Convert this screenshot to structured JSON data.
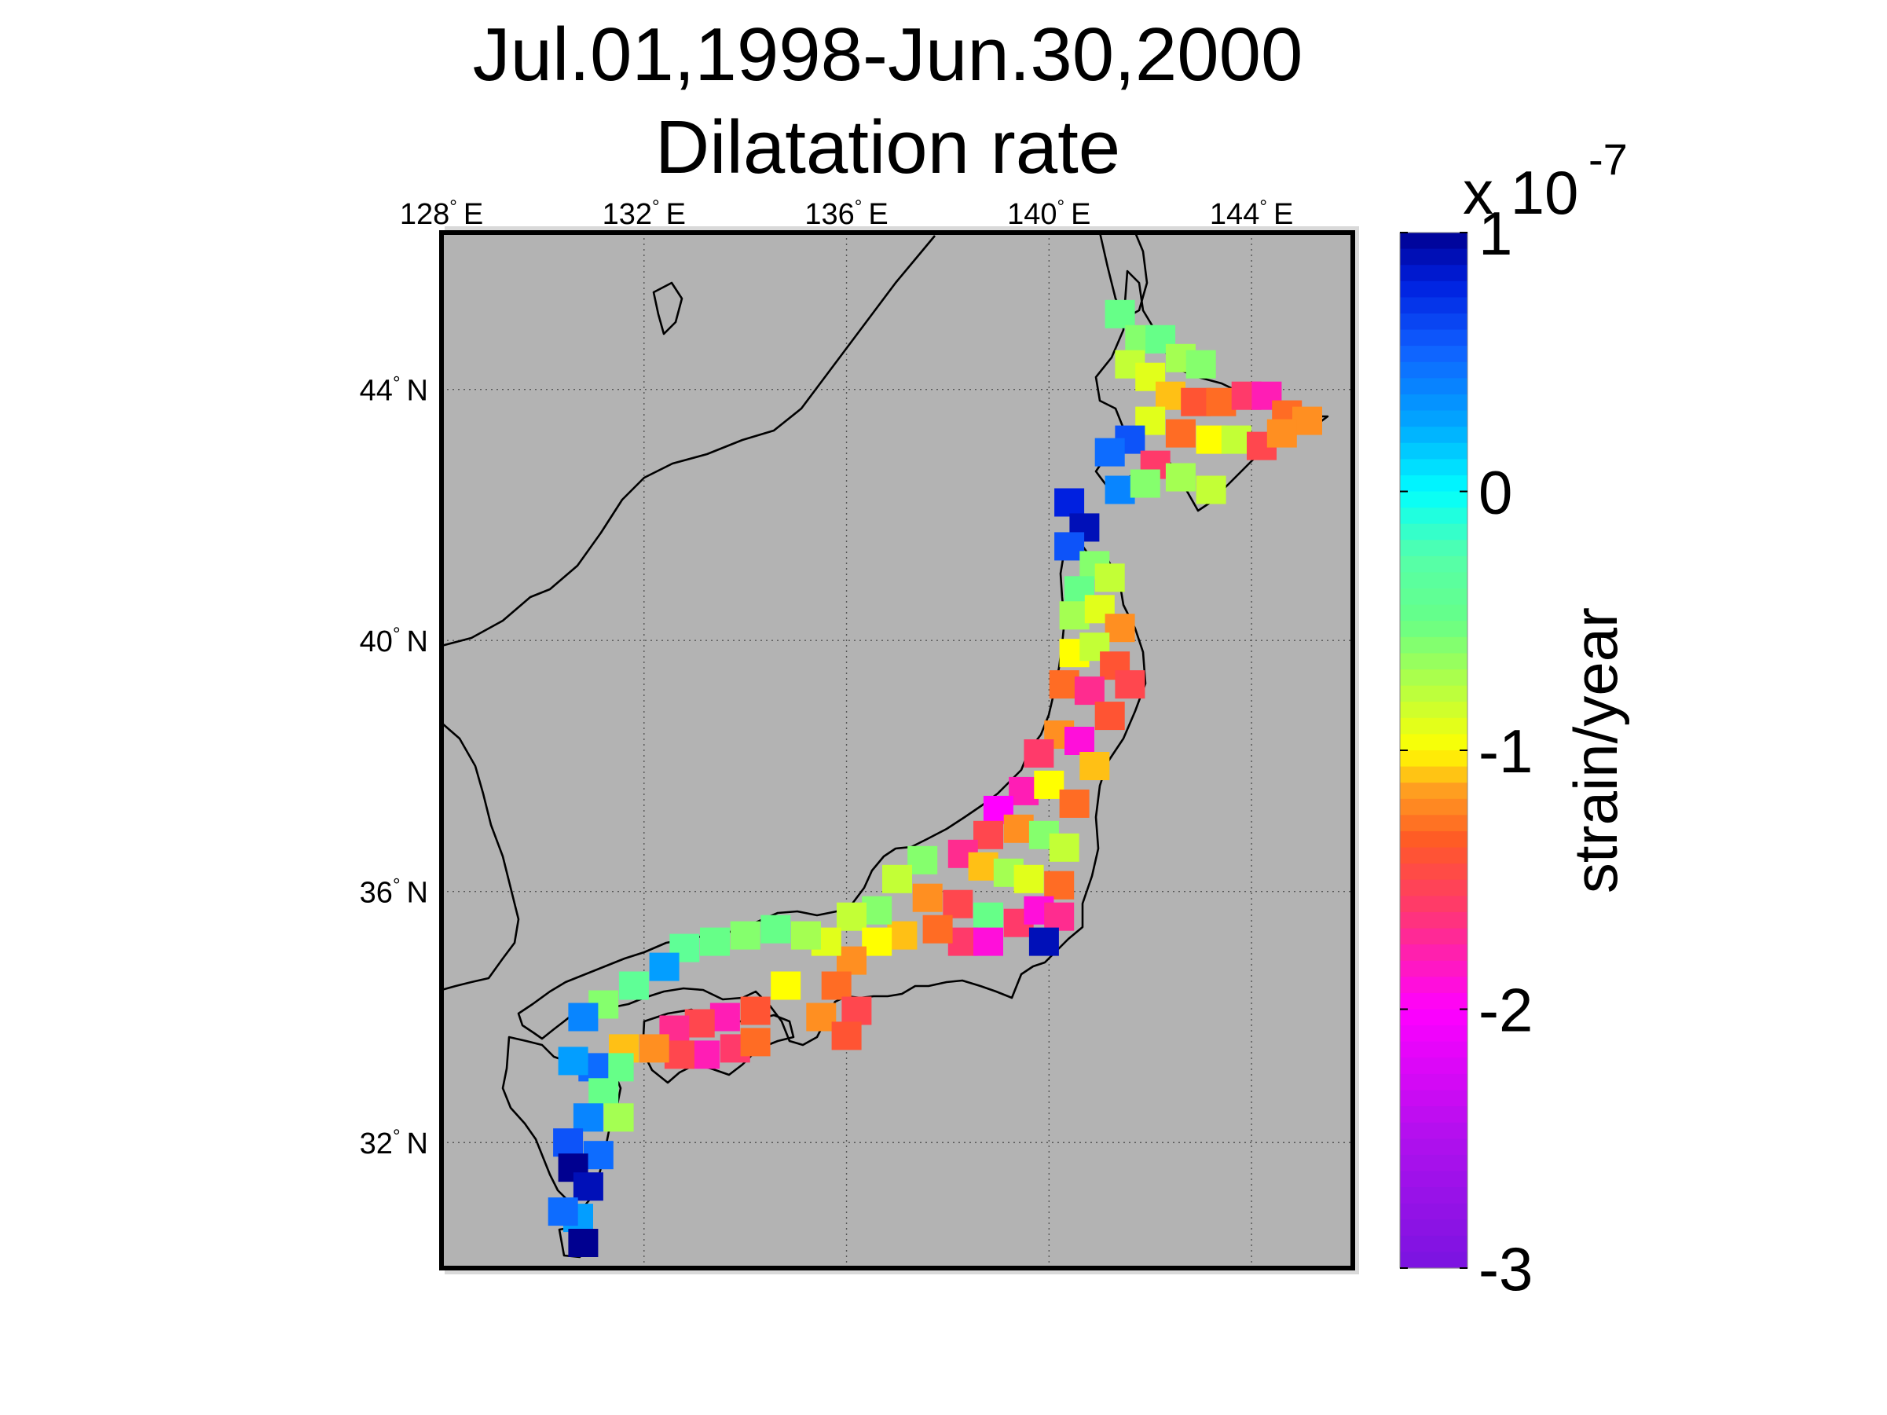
{
  "map": {
    "title_line1": "Jul.01,1998-Jun.30,2000",
    "title_line2": "Dilatation rate",
    "extent": {
      "lon_min": 128,
      "lon_max": 146,
      "lat_min": 30,
      "lat_max": 46.5
    },
    "lon_ticks": [
      {
        "value": 128,
        "label": "128",
        "suffix": "E"
      },
      {
        "value": 132,
        "label": "132",
        "suffix": "E"
      },
      {
        "value": 136,
        "label": "136",
        "suffix": "E"
      },
      {
        "value": 140,
        "label": "140",
        "suffix": "E"
      },
      {
        "value": 144,
        "label": "144",
        "suffix": "E"
      }
    ],
    "lat_ticks": [
      {
        "value": 44,
        "label": "44",
        "suffix": "N"
      },
      {
        "value": 40,
        "label": "40",
        "suffix": "N"
      },
      {
        "value": 36,
        "label": "36",
        "suffix": "N"
      },
      {
        "value": 32,
        "label": "32",
        "suffix": "N"
      }
    ],
    "ocean_color": "#b3b3b3",
    "grid": true
  },
  "colorbar": {
    "label": "strain/year",
    "multiplier_base": "x 10",
    "multiplier_exp": "-7",
    "min": -3,
    "max": 1,
    "ticks": [
      {
        "value": 1,
        "label": "1"
      },
      {
        "value": 0,
        "label": "0"
      },
      {
        "value": -1,
        "label": "-1"
      },
      {
        "value": -2,
        "label": "-2"
      },
      {
        "value": -3,
        "label": "-3"
      }
    ],
    "colormap": [
      [
        -3.0,
        "#7a14e0"
      ],
      [
        -2.5,
        "#b010ee"
      ],
      [
        -2.0,
        "#ff00ff"
      ],
      [
        -1.6,
        "#ff3a6a"
      ],
      [
        -1.35,
        "#ff5a25"
      ],
      [
        -1.15,
        "#ffa020"
      ],
      [
        -1.0,
        "#ffff00"
      ],
      [
        -0.75,
        "#b4ff44"
      ],
      [
        -0.5,
        "#66ff88"
      ],
      [
        -0.25,
        "#55ffaa"
      ],
      [
        0.0,
        "#00ffff"
      ],
      [
        0.25,
        "#00aaff"
      ],
      [
        0.55,
        "#1060ff"
      ],
      [
        0.8,
        "#0020e0"
      ],
      [
        1.0,
        "#000090"
      ]
    ]
  },
  "chart_data": {
    "type": "heatmap",
    "title": "Jul.01,1998-Jun.30,2000 Dilatation rate",
    "x_axis": "longitude (E)",
    "y_axis": "latitude (N)",
    "value_units": "x 10^-7 strain/year",
    "xlim": [
      128,
      146
    ],
    "ylim": [
      30,
      46.5
    ],
    "vmin": -3,
    "vmax": 1,
    "cells": [
      [
        141.4,
        45.2,
        -0.5
      ],
      [
        141.8,
        44.8,
        -0.6
      ],
      [
        142.2,
        44.8,
        -0.5
      ],
      [
        142.6,
        44.5,
        -0.7
      ],
      [
        143.0,
        44.4,
        -0.6
      ],
      [
        141.6,
        44.4,
        -0.8
      ],
      [
        142.0,
        44.2,
        -0.9
      ],
      [
        142.4,
        43.9,
        -1.1
      ],
      [
        142.9,
        43.8,
        -1.4
      ],
      [
        143.4,
        43.8,
        -1.3
      ],
      [
        143.9,
        43.9,
        -1.6
      ],
      [
        144.3,
        43.9,
        -1.8
      ],
      [
        144.7,
        43.6,
        -1.3
      ],
      [
        145.1,
        43.5,
        -1.2
      ],
      [
        142.0,
        43.5,
        -0.9
      ],
      [
        142.6,
        43.3,
        -1.3
      ],
      [
        143.2,
        43.2,
        -1.0
      ],
      [
        143.7,
        43.2,
        -0.8
      ],
      [
        144.2,
        43.1,
        -1.5
      ],
      [
        144.6,
        43.3,
        -1.2
      ],
      [
        141.6,
        43.2,
        0.6
      ],
      [
        141.2,
        43.0,
        0.5
      ],
      [
        142.1,
        42.8,
        -1.6
      ],
      [
        141.4,
        42.4,
        0.4
      ],
      [
        141.9,
        42.5,
        -0.6
      ],
      [
        142.6,
        42.6,
        -0.7
      ],
      [
        143.2,
        42.4,
        -0.8
      ],
      [
        140.4,
        42.2,
        0.8
      ],
      [
        140.7,
        41.8,
        0.9
      ],
      [
        140.4,
        41.5,
        0.6
      ],
      [
        140.9,
        41.2,
        -0.6
      ],
      [
        141.2,
        41.0,
        -0.8
      ],
      [
        140.6,
        40.8,
        -0.5
      ],
      [
        140.5,
        40.4,
        -0.7
      ],
      [
        141.0,
        40.5,
        -0.9
      ],
      [
        141.4,
        40.2,
        -1.2
      ],
      [
        140.5,
        39.8,
        -1.0
      ],
      [
        140.9,
        39.9,
        -0.8
      ],
      [
        141.3,
        39.6,
        -1.4
      ],
      [
        141.6,
        39.3,
        -1.5
      ],
      [
        140.3,
        39.3,
        -1.3
      ],
      [
        140.8,
        39.2,
        -1.7
      ],
      [
        141.2,
        38.8,
        -1.4
      ],
      [
        140.2,
        38.5,
        -1.2
      ],
      [
        140.6,
        38.4,
        -1.9
      ],
      [
        140.9,
        38.0,
        -1.1
      ],
      [
        139.8,
        38.2,
        -1.6
      ],
      [
        139.5,
        37.6,
        -1.8
      ],
      [
        140.0,
        37.7,
        -1.0
      ],
      [
        140.5,
        37.4,
        -1.3
      ],
      [
        139.0,
        37.3,
        -2.0
      ],
      [
        139.4,
        37.0,
        -1.2
      ],
      [
        139.9,
        36.9,
        -0.6
      ],
      [
        140.3,
        36.7,
        -0.8
      ],
      [
        138.8,
        36.9,
        -1.5
      ],
      [
        138.3,
        36.6,
        -1.7
      ],
      [
        138.7,
        36.4,
        -1.1
      ],
      [
        139.2,
        36.3,
        -0.7
      ],
      [
        139.6,
        36.2,
        -0.9
      ],
      [
        140.2,
        36.1,
        -1.3
      ],
      [
        137.5,
        36.5,
        -0.6
      ],
      [
        137.0,
        36.2,
        -0.8
      ],
      [
        137.6,
        35.9,
        -1.2
      ],
      [
        138.2,
        35.8,
        -1.5
      ],
      [
        138.8,
        35.6,
        -0.5
      ],
      [
        139.4,
        35.5,
        -1.6
      ],
      [
        139.8,
        35.7,
        -1.9
      ],
      [
        140.2,
        35.6,
        -1.7
      ],
      [
        139.9,
        35.2,
        0.9
      ],
      [
        138.3,
        35.2,
        -1.6
      ],
      [
        138.8,
        35.2,
        -1.9
      ],
      [
        137.8,
        35.4,
        -1.3
      ],
      [
        137.1,
        35.3,
        -1.1
      ],
      [
        136.6,
        35.7,
        -0.6
      ],
      [
        136.1,
        35.6,
        -0.8
      ],
      [
        136.6,
        35.2,
        -1.0
      ],
      [
        136.1,
        34.9,
        -1.2
      ],
      [
        135.6,
        35.2,
        -0.9
      ],
      [
        135.2,
        35.3,
        -0.7
      ],
      [
        134.6,
        35.4,
        -0.5
      ],
      [
        134.0,
        35.3,
        -0.6
      ],
      [
        133.4,
        35.2,
        -0.5
      ],
      [
        132.8,
        35.1,
        -0.4
      ],
      [
        132.4,
        34.8,
        0.3
      ],
      [
        131.8,
        34.5,
        -0.4
      ],
      [
        131.2,
        34.2,
        -0.6
      ],
      [
        130.8,
        34.0,
        0.4
      ],
      [
        135.8,
        34.5,
        -1.3
      ],
      [
        135.5,
        34.0,
        -1.2
      ],
      [
        136.2,
        34.1,
        -1.5
      ],
      [
        136.0,
        33.7,
        -1.4
      ],
      [
        134.8,
        34.5,
        -1.0
      ],
      [
        134.2,
        34.1,
        -1.4
      ],
      [
        133.6,
        34.0,
        -1.8
      ],
      [
        133.1,
        33.9,
        -1.5
      ],
      [
        132.6,
        33.8,
        -1.7
      ],
      [
        133.8,
        33.5,
        -1.6
      ],
      [
        134.2,
        33.6,
        -1.3
      ],
      [
        133.2,
        33.4,
        -1.8
      ],
      [
        132.7,
        33.4,
        -1.5
      ],
      [
        132.2,
        33.5,
        -1.2
      ],
      [
        131.6,
        33.5,
        -1.1
      ],
      [
        131.5,
        33.2,
        -0.5
      ],
      [
        131.0,
        33.2,
        0.5
      ],
      [
        130.6,
        33.3,
        0.3
      ],
      [
        131.2,
        32.8,
        -0.5
      ],
      [
        131.5,
        32.4,
        -0.7
      ],
      [
        130.9,
        32.4,
        0.4
      ],
      [
        130.5,
        32.0,
        0.6
      ],
      [
        131.1,
        31.8,
        0.5
      ],
      [
        130.6,
        31.6,
        1.0
      ],
      [
        130.9,
        31.3,
        0.9
      ],
      [
        130.7,
        30.8,
        0.3
      ],
      [
        130.8,
        30.4,
        1.0
      ],
      [
        130.4,
        30.9,
        0.5
      ]
    ]
  }
}
